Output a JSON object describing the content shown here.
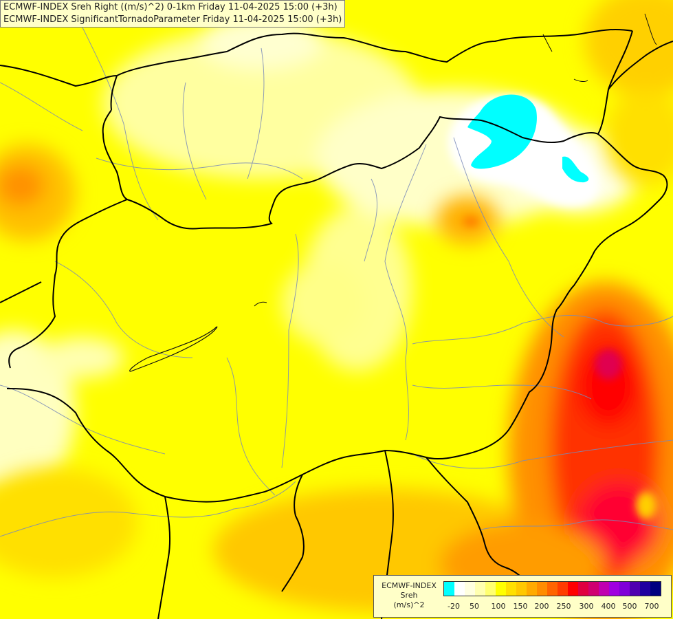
{
  "titles": {
    "line1": "ECMWF-INDEX Sreh Right ((m/s)^2) 0-1km Friday 11-04-2025 15:00 (+3h)",
    "line2": "ECMWF-INDEX SignificantTornadoParameter Friday 11-04-2025 15:00 (+3h)"
  },
  "legend": {
    "line1": "ECMWF-INDEX",
    "line2": "Sreh",
    "line3": "(m/s)^2",
    "colors": [
      "#00ffff",
      "#ffffff",
      "#ffffe0",
      "#ffffb0",
      "#ffff70",
      "#ffff00",
      "#ffe000",
      "#ffc800",
      "#ffaa00",
      "#ff8c00",
      "#ff6400",
      "#ff3c00",
      "#ff0000",
      "#e00040",
      "#d00070",
      "#c000b0",
      "#a000e0",
      "#8000d8",
      "#5000b0",
      "#2000a0",
      "#000080"
    ],
    "ticks": [
      "-20",
      "50",
      "100",
      "150",
      "200",
      "250",
      "300",
      "400",
      "500",
      "700"
    ]
  }
}
